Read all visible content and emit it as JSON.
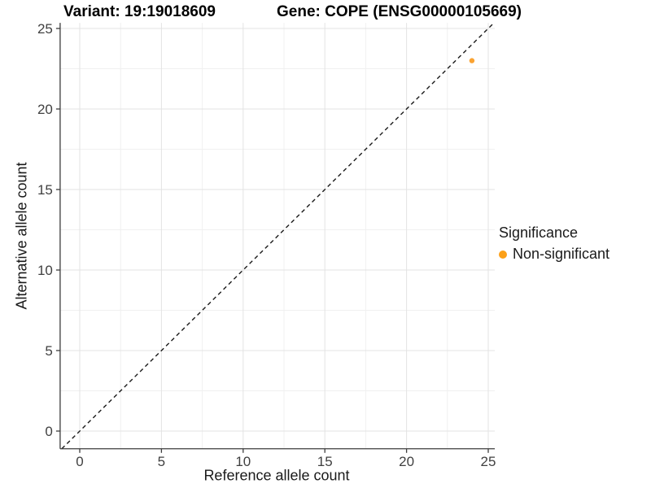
{
  "titles": {
    "variant": "Variant: 19:19018609",
    "gene": "Gene: COPE (ENSG00000105669)"
  },
  "chart_data": {
    "type": "scatter",
    "xlabel": "Reference allele count",
    "ylabel": "Alternative allele count",
    "x_ticks": [
      0,
      5,
      10,
      15,
      20,
      25
    ],
    "y_ticks": [
      0,
      5,
      10,
      15,
      20,
      25
    ],
    "x_minor_ticks": [
      2.5,
      7.5,
      12.5,
      17.5,
      22.5
    ],
    "y_minor_ticks": [
      2.5,
      7.5,
      12.5,
      17.5,
      22.5
    ],
    "xlim": [
      -1.2,
      25.4
    ],
    "ylim": [
      -1.1,
      25.35
    ],
    "grid": true,
    "abline": {
      "slope": 1,
      "intercept": 0,
      "style": "dashed"
    },
    "series": [
      {
        "name": "Non-significant",
        "color": "#FAA332",
        "points": [
          {
            "x": 24,
            "y": 23
          }
        ]
      }
    ],
    "legend": {
      "title": "Significance",
      "position": "right",
      "items": [
        {
          "label": "Non-significant",
          "color": "#FCA018"
        }
      ]
    }
  },
  "colors": {
    "major_grid": "#e3e3e3",
    "minor_grid": "#f0f0f0",
    "axis_line": "#3c3c3c",
    "tick_label": "#404040",
    "abline": "#1a1a1a",
    "background": "#ffffff"
  }
}
